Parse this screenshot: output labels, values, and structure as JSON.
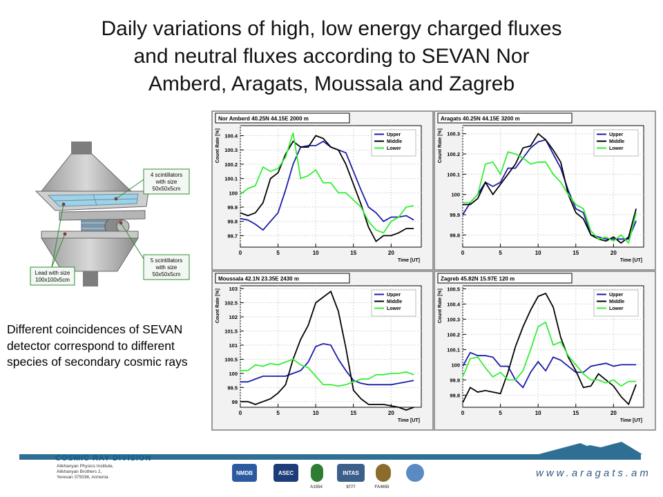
{
  "slide": {
    "title_lines": [
      "Daily variations of high, low energy charged fluxes",
      "and neutral fluxes according to SEVAN Nor",
      "Amberd, Aragats, Moussala and Zagreb"
    ],
    "caption": "Different coincidences of SEVAN detector correspond to different species of secondary cosmic rays",
    "detector": {
      "label_top": [
        "4 scintillators",
        "with size",
        "50x50x5cm"
      ],
      "label_bottom": [
        "5 scintillators",
        "with size",
        "50x50x5cm"
      ],
      "label_lead": [
        "Lead with size",
        "100x100x5cm"
      ]
    },
    "footer": {
      "division": "COSMIC RAY DIVISION",
      "address": [
        "Alikhanyan Physics Institute,",
        "Alikhanyan Brothers 2,",
        "Yerevan 375036, Armenia"
      ],
      "url": "www.aragats.am",
      "logos": [
        "NMDB",
        "ASEC",
        "INTAS",
        "A1554",
        "$777",
        "FA4655"
      ]
    },
    "colors": {
      "upper": "#1a1aa8",
      "middle": "#000000",
      "lower": "#33ee33",
      "frame": "#7a7a7a"
    }
  },
  "chart_data": [
    {
      "type": "line",
      "title": "Nor Amberd 40.25N 44.15E 2000 m",
      "xlabel": "Time [UT]",
      "ylabel": "Count Rate [%]",
      "xlim": [
        0,
        24
      ],
      "ylim": [
        99.62,
        100.47
      ],
      "xticks": [
        0,
        5,
        10,
        15,
        20
      ],
      "yticks": [
        99.7,
        99.8,
        99.9,
        100,
        100.1,
        100.2,
        100.3,
        100.4
      ],
      "ytick_labels": [
        "99.7",
        "99.8",
        "99.9",
        "100",
        "100.1",
        "100.2",
        "100.3",
        "100.4"
      ],
      "x": [
        0,
        1,
        2,
        3,
        4,
        5,
        6,
        7,
        8,
        9,
        10,
        11,
        12,
        13,
        14,
        15,
        16,
        17,
        18,
        19,
        20,
        21,
        22,
        23
      ],
      "series": [
        {
          "name": "Upper",
          "values": [
            99.82,
            99.81,
            99.78,
            99.74,
            99.8,
            99.86,
            100.02,
            100.2,
            100.32,
            100.33,
            100.33,
            100.36,
            100.32,
            100.3,
            100.28,
            100.15,
            100.02,
            99.9,
            99.86,
            99.8,
            99.83,
            99.83,
            99.84,
            99.81
          ]
        },
        {
          "name": "Middle",
          "values": [
            99.86,
            99.84,
            99.86,
            99.93,
            100.1,
            100.14,
            100.27,
            100.36,
            100.32,
            100.32,
            100.4,
            100.38,
            100.32,
            100.3,
            100.2,
            100.06,
            99.92,
            99.76,
            99.66,
            99.7,
            99.7,
            99.72,
            99.75,
            99.75
          ]
        },
        {
          "name": "Lower",
          "values": [
            99.99,
            100.03,
            100.05,
            100.18,
            100.15,
            100.17,
            100.25,
            100.42,
            100.1,
            100.12,
            100.16,
            100.07,
            100.07,
            100.0,
            100.0,
            99.95,
            99.9,
            99.8,
            99.74,
            99.72,
            99.8,
            99.83,
            99.9,
            99.91
          ]
        }
      ],
      "legend": "top-right"
    },
    {
      "type": "line",
      "title": "Aragats 40.25N 44.15E 3200 m",
      "xlabel": "Time [UT]",
      "ylabel": "Count Rate [%]",
      "xlim": [
        0,
        24
      ],
      "ylim": [
        99.74,
        100.34
      ],
      "xticks": [
        0,
        5,
        10,
        15,
        20
      ],
      "yticks": [
        99.8,
        99.9,
        100,
        100.1,
        100.2,
        100.3
      ],
      "ytick_labels": [
        "99.8",
        "99.9",
        "100",
        "100.1",
        "100.2",
        "100.3"
      ],
      "x": [
        0,
        1,
        2,
        3,
        4,
        5,
        6,
        7,
        8,
        9,
        10,
        11,
        12,
        13,
        14,
        15,
        16,
        17,
        18,
        19,
        20,
        21,
        22,
        23
      ],
      "series": [
        {
          "name": "Upper",
          "values": [
            99.9,
            99.96,
            100.0,
            100.06,
            100.04,
            100.06,
            100.13,
            100.13,
            100.18,
            100.23,
            100.26,
            100.27,
            100.2,
            100.13,
            100.02,
            99.93,
            99.91,
            99.8,
            99.79,
            99.78,
            99.78,
            99.78,
            99.78,
            99.87
          ]
        },
        {
          "name": "Middle",
          "values": [
            99.95,
            99.95,
            99.98,
            100.06,
            100.0,
            100.05,
            100.1,
            100.15,
            100.23,
            100.24,
            100.3,
            100.27,
            100.22,
            100.16,
            100.0,
            99.91,
            99.88,
            99.8,
            99.78,
            99.77,
            99.79,
            99.76,
            99.79,
            99.93
          ]
        },
        {
          "name": "Lower",
          "values": [
            99.96,
            99.96,
            100.0,
            100.15,
            100.16,
            100.1,
            100.21,
            100.2,
            100.18,
            100.15,
            100.16,
            100.16,
            100.1,
            100.06,
            100.0,
            99.95,
            99.93,
            99.82,
            99.78,
            99.79,
            99.77,
            99.8,
            99.76,
            99.91
          ]
        }
      ],
      "legend": "top-right"
    },
    {
      "type": "line",
      "title": "Moussala 42.1N 23.35E 2430 m",
      "xlabel": "Time [UT]",
      "ylabel": "Count Rate [%]",
      "xlim": [
        0,
        24
      ],
      "ylim": [
        98.8,
        103.1
      ],
      "xticks": [
        0,
        5,
        10,
        15,
        20
      ],
      "yticks": [
        99,
        99.5,
        100,
        100.5,
        101,
        101.5,
        102,
        102.5,
        103
      ],
      "ytick_labels": [
        "99",
        "99.5",
        "100",
        "100.5",
        "101",
        "101.5",
        "102",
        "102.5",
        "103"
      ],
      "x": [
        0,
        1,
        2,
        3,
        4,
        5,
        6,
        7,
        8,
        9,
        10,
        11,
        12,
        13,
        14,
        15,
        16,
        17,
        18,
        19,
        20,
        21,
        22,
        23
      ],
      "series": [
        {
          "name": "Upper",
          "values": [
            99.7,
            99.7,
            99.8,
            99.9,
            99.9,
            99.9,
            99.9,
            100.0,
            100.1,
            100.4,
            100.95,
            101.05,
            101.0,
            100.5,
            100.1,
            99.75,
            99.65,
            99.6,
            99.6,
            99.6,
            99.6,
            99.65,
            99.7,
            99.75
          ]
        },
        {
          "name": "Middle",
          "values": [
            99.0,
            99.0,
            98.9,
            99.0,
            99.1,
            99.3,
            99.6,
            100.5,
            101.2,
            101.7,
            102.5,
            102.7,
            102.9,
            102.2,
            100.9,
            99.4,
            99.1,
            98.9,
            98.9,
            98.9,
            98.85,
            98.8,
            98.7,
            98.8
          ]
        },
        {
          "name": "Lower",
          "values": [
            100.1,
            100.1,
            100.3,
            100.25,
            100.35,
            100.3,
            100.4,
            100.5,
            100.3,
            100.2,
            99.9,
            99.6,
            99.6,
            99.55,
            99.6,
            99.7,
            99.8,
            99.8,
            99.95,
            99.95,
            100.0,
            100.0,
            100.05,
            99.95
          ]
        }
      ],
      "legend": "top-right"
    },
    {
      "type": "line",
      "title": "Zagreb 45.82N 15.97E 120 m",
      "xlabel": "Time [UT]",
      "ylabel": "Count Rate [%]",
      "xlim": [
        0,
        24
      ],
      "ylim": [
        99.72,
        100.52
      ],
      "xticks": [
        0,
        5,
        10,
        15,
        20
      ],
      "yticks": [
        99.8,
        99.9,
        100,
        100.1,
        100.2,
        100.3,
        100.4,
        100.5
      ],
      "ytick_labels": [
        "99.8",
        "99.9",
        "100",
        "100.1",
        "100.2",
        "100.3",
        "100.4",
        "100.5"
      ],
      "x": [
        0,
        1,
        2,
        3,
        4,
        5,
        6,
        7,
        8,
        9,
        10,
        11,
        12,
        13,
        14,
        15,
        16,
        17,
        18,
        19,
        20,
        21,
        22,
        23
      ],
      "series": [
        {
          "name": "Upper",
          "values": [
            99.99,
            100.08,
            100.06,
            100.06,
            100.05,
            99.99,
            99.99,
            99.9,
            99.85,
            99.95,
            100.02,
            99.96,
            100.05,
            100.03,
            99.99,
            99.95,
            99.95,
            99.99,
            100.0,
            100.01,
            99.99,
            100.0,
            100.0,
            100.0
          ]
        },
        {
          "name": "Middle",
          "values": [
            99.75,
            99.85,
            99.82,
            99.83,
            99.82,
            99.81,
            99.95,
            100.12,
            100.25,
            100.36,
            100.45,
            100.47,
            100.38,
            100.18,
            100.05,
            99.96,
            99.85,
            99.86,
            99.94,
            99.9,
            99.86,
            99.79,
            99.74,
            99.87
          ]
        },
        {
          "name": "Lower",
          "values": [
            99.92,
            100.04,
            100.05,
            99.98,
            99.92,
            99.95,
            99.9,
            99.9,
            99.96,
            100.1,
            100.25,
            100.28,
            100.13,
            100.15,
            100.06,
            100.0,
            99.94,
            99.9,
            99.9,
            99.88,
            99.9,
            99.86,
            99.89,
            99.89
          ]
        }
      ],
      "legend": "top-right"
    }
  ]
}
